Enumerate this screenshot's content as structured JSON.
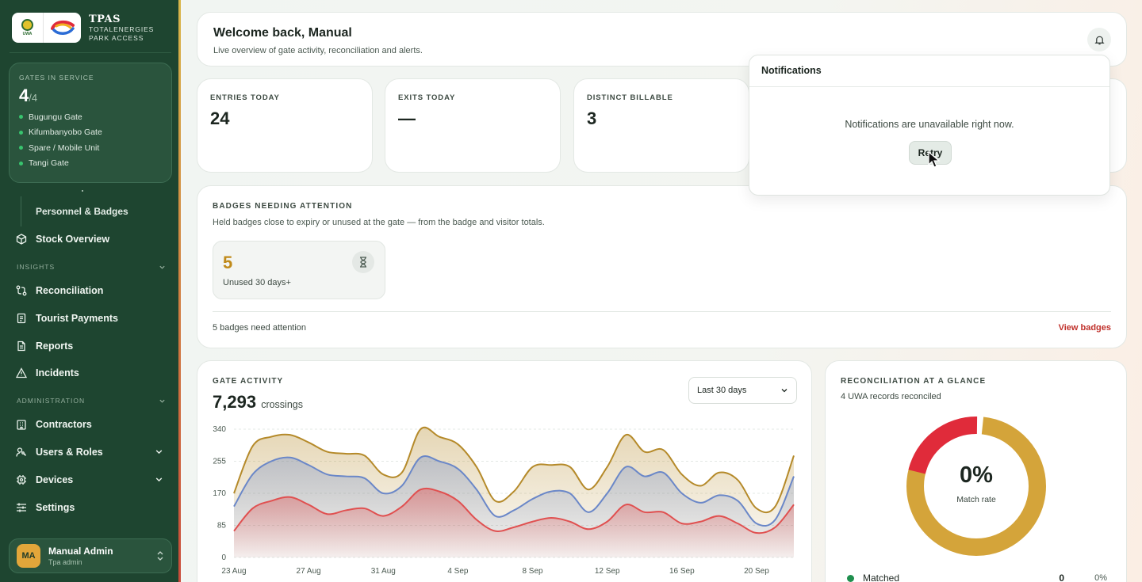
{
  "brand": {
    "title": "TPAS",
    "sub1": "TOTALENERGIES",
    "sub2": "PARK ACCESS",
    "uwa_text": "UWA"
  },
  "gates": {
    "label": "GATES IN SERVICE",
    "in_service": "4",
    "total": "/4",
    "items": [
      "Bugungu Gate",
      "Kifumbanyobo Gate",
      "Spare / Mobile Unit",
      "Tangi Gate"
    ]
  },
  "nav": {
    "personnel": "Personnel & Badges",
    "stock": "Stock Overview",
    "insights_label": "INSIGHTS",
    "reconciliation": "Reconciliation",
    "tourist_payments": "Tourist Payments",
    "reports": "Reports",
    "incidents": "Incidents",
    "admin_label": "ADMINISTRATION",
    "contractors": "Contractors",
    "users_roles": "Users & Roles",
    "devices": "Devices",
    "settings": "Settings"
  },
  "user": {
    "initials": "MA",
    "name": "Manual Admin",
    "role": "Tpa admin"
  },
  "welcome": {
    "title": "Welcome back, Manual",
    "subtitle": "Live overview of gate activity, reconciliation and alerts."
  },
  "stats": [
    {
      "label": "ENTRIES TODAY",
      "value": "24"
    },
    {
      "label": "EXITS TODAY",
      "value": "—"
    },
    {
      "label": "DISTINCT BILLABLE",
      "value": "3"
    }
  ],
  "badges": {
    "label": "BADGES NEEDING ATTENTION",
    "description": "Held badges close to expiry or unused at the gate — from the badge and visitor totals.",
    "tile_value": "5",
    "tile_caption": "Unused 30 days+",
    "footer": "5 badges need attention",
    "link": "View badges"
  },
  "activity": {
    "label": "GATE ACTIVITY",
    "total": "7,293",
    "unit": "crossings",
    "range": "Last 30 days"
  },
  "recon": {
    "label": "RECONCILIATION AT A GLANCE",
    "subtitle": "4 UWA records reconciled",
    "pct": "0%",
    "caption": "Match rate",
    "legend_label": "Matched",
    "legend_value": "0",
    "legend_pct": "0%"
  },
  "notifications": {
    "title": "Notifications",
    "message": "Notifications are unavailable right now.",
    "retry": "Retry"
  },
  "colors": {
    "sidebar": "#1e4530",
    "accent_gold": "#d4a43a",
    "accent_red": "#e02b3a",
    "link_red": "#c0312b"
  },
  "chart_data": {
    "type": "area",
    "ylim": [
      0,
      340
    ],
    "yticks": [
      0,
      85,
      170,
      255,
      340
    ],
    "xtick_labels": [
      "23 Aug",
      "27 Aug",
      "31 Aug",
      "4 Sep",
      "8 Sep",
      "12 Sep",
      "16 Sep",
      "20 Sep"
    ],
    "series": [
      {
        "color": "#e05050",
        "values": [
          70,
          130,
          150,
          160,
          140,
          115,
          125,
          130,
          110,
          135,
          180,
          175,
          150,
          100,
          70,
          80,
          95,
          105,
          95,
          75,
          95,
          140,
          120,
          120,
          90,
          95,
          110,
          90,
          65,
          80,
          140
        ]
      },
      {
        "color": "#6a87c8",
        "values": [
          135,
          220,
          255,
          265,
          245,
          220,
          215,
          210,
          170,
          190,
          265,
          255,
          235,
          180,
          110,
          125,
          155,
          175,
          170,
          120,
          170,
          240,
          215,
          225,
          170,
          145,
          165,
          150,
          90,
          100,
          215
        ]
      },
      {
        "color": "#b58a2a",
        "values": [
          170,
          295,
          320,
          325,
          305,
          280,
          275,
          270,
          220,
          225,
          340,
          320,
          300,
          240,
          150,
          175,
          240,
          245,
          240,
          180,
          240,
          325,
          280,
          285,
          220,
          190,
          225,
          205,
          130,
          135,
          270
        ]
      }
    ]
  }
}
